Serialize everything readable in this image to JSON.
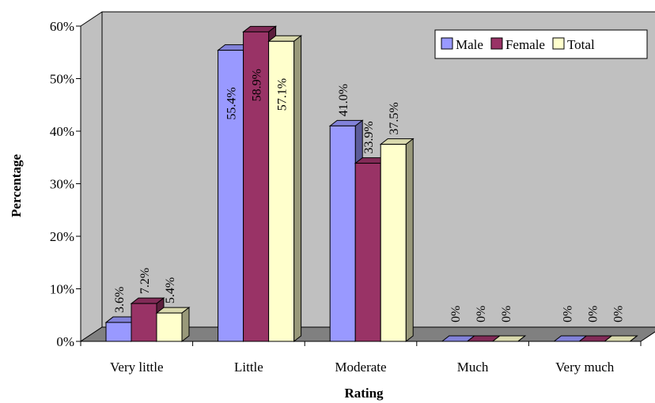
{
  "chart_data": {
    "type": "bar",
    "title": "",
    "xlabel": "Rating",
    "ylabel": "Percentage",
    "ylim": [
      0,
      60
    ],
    "yticks": [
      "0%",
      "10%",
      "20%",
      "30%",
      "40%",
      "50%",
      "60%"
    ],
    "categories": [
      "Very little",
      "Little",
      "Moderate",
      "Much",
      "Very much"
    ],
    "series": [
      {
        "name": "Male",
        "color": "#9999ff",
        "values": [
          3.6,
          55.4,
          41.0,
          0,
          0
        ],
        "labels": [
          "3.6%",
          "55.4%",
          "41.0%",
          "0%",
          "0%"
        ]
      },
      {
        "name": "Female",
        "color": "#993366",
        "values": [
          7.2,
          58.9,
          33.9,
          0,
          0
        ],
        "labels": [
          "7.2%",
          "58.9%",
          "33.9%",
          "0%",
          "0%"
        ]
      },
      {
        "name": "Total",
        "color": "#ffffcc",
        "values": [
          5.4,
          57.1,
          37.5,
          0,
          0
        ],
        "labels": [
          "5.4%",
          "57.1%",
          "37.5%",
          "0%",
          "0%"
        ]
      }
    ],
    "legend_position": "top-right",
    "grid": false,
    "wall_color": "#c0c0c0",
    "floor_color": "#808080"
  }
}
